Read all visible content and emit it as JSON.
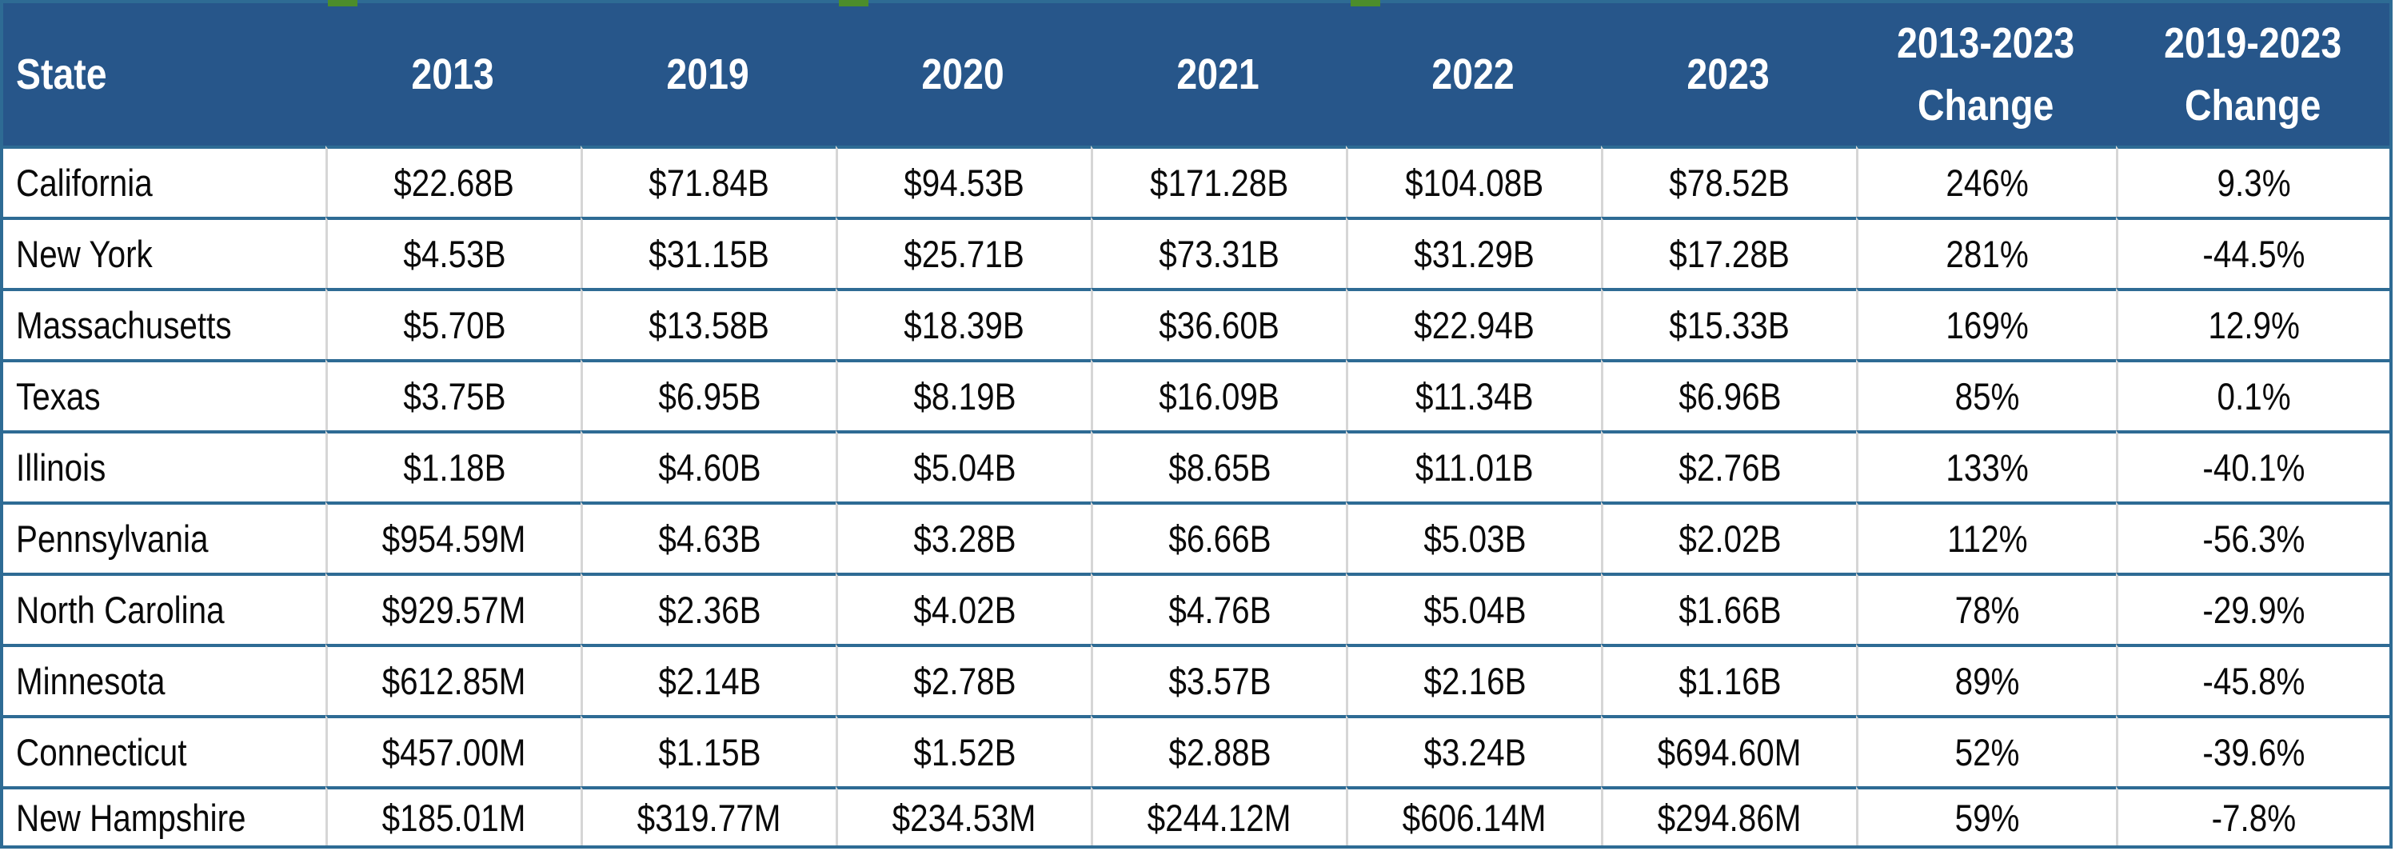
{
  "chart_data": {
    "type": "table",
    "columns": [
      {
        "label": "State"
      },
      {
        "label": "2013"
      },
      {
        "label": "2019"
      },
      {
        "label": "2020"
      },
      {
        "label": "2021"
      },
      {
        "label": "2022"
      },
      {
        "label": "2023"
      },
      {
        "label_line1": "2013-2023",
        "label_line2": "Change"
      },
      {
        "label_line1": "2019-2023",
        "label_line2": "Change"
      }
    ],
    "rows": [
      {
        "state": "California",
        "values": [
          "$22.68B",
          "$71.84B",
          "$94.53B",
          "$171.28B",
          "$104.08B",
          "$78.52B"
        ],
        "change_2013_2023": "246%",
        "change_2019_2023": "9.3%"
      },
      {
        "state": "New York",
        "values": [
          "$4.53B",
          "$31.15B",
          "$25.71B",
          "$73.31B",
          "$31.29B",
          "$17.28B"
        ],
        "change_2013_2023": "281%",
        "change_2019_2023": "-44.5%"
      },
      {
        "state": "Massachusetts",
        "values": [
          "$5.70B",
          "$13.58B",
          "$18.39B",
          "$36.60B",
          "$22.94B",
          "$15.33B"
        ],
        "change_2013_2023": "169%",
        "change_2019_2023": "12.9%"
      },
      {
        "state": "Texas",
        "values": [
          "$3.75B",
          "$6.95B",
          "$8.19B",
          "$16.09B",
          "$11.34B",
          "$6.96B"
        ],
        "change_2013_2023": "85%",
        "change_2019_2023": "0.1%"
      },
      {
        "state": "Illinois",
        "values": [
          "$1.18B",
          "$4.60B",
          "$5.04B",
          "$8.65B",
          "$11.01B",
          "$2.76B"
        ],
        "change_2013_2023": "133%",
        "change_2019_2023": "-40.1%"
      },
      {
        "state": "Pennsylvania",
        "values": [
          "$954.59M",
          "$4.63B",
          "$3.28B",
          "$6.66B",
          "$5.03B",
          "$2.02B"
        ],
        "change_2013_2023": "112%",
        "change_2019_2023": "-56.3%"
      },
      {
        "state": "North Carolina",
        "values": [
          "$929.57M",
          "$2.36B",
          "$4.02B",
          "$4.76B",
          "$5.04B",
          "$1.66B"
        ],
        "change_2013_2023": "78%",
        "change_2019_2023": "-29.9%"
      },
      {
        "state": "Minnesota",
        "values": [
          "$612.85M",
          "$2.14B",
          "$2.78B",
          "$3.57B",
          "$2.16B",
          "$1.16B"
        ],
        "change_2013_2023": "89%",
        "change_2019_2023": "-45.8%"
      },
      {
        "state": "Connecticut",
        "values": [
          "$457.00M",
          "$1.15B",
          "$1.52B",
          "$2.88B",
          "$3.24B",
          "$694.60M"
        ],
        "change_2013_2023": "52%",
        "change_2019_2023": "-39.6%"
      },
      {
        "state": "New Hampshire",
        "values": [
          "$185.01M",
          "$319.77M",
          "$234.53M",
          "$244.12M",
          "$606.14M",
          "$294.86M"
        ],
        "change_2013_2023": "59%",
        "change_2019_2023": "-7.8%"
      }
    ]
  },
  "colors": {
    "header_bg": "#27568A",
    "header_text": "#FFFFFF",
    "row_divider": "#2E6B94",
    "column_divider": "#D6D6D6",
    "cell_text": "#0A0A0A",
    "table_border": "#2E6B94",
    "artifact_green": "#4C8D2B",
    "background": "#FFFFFF"
  }
}
